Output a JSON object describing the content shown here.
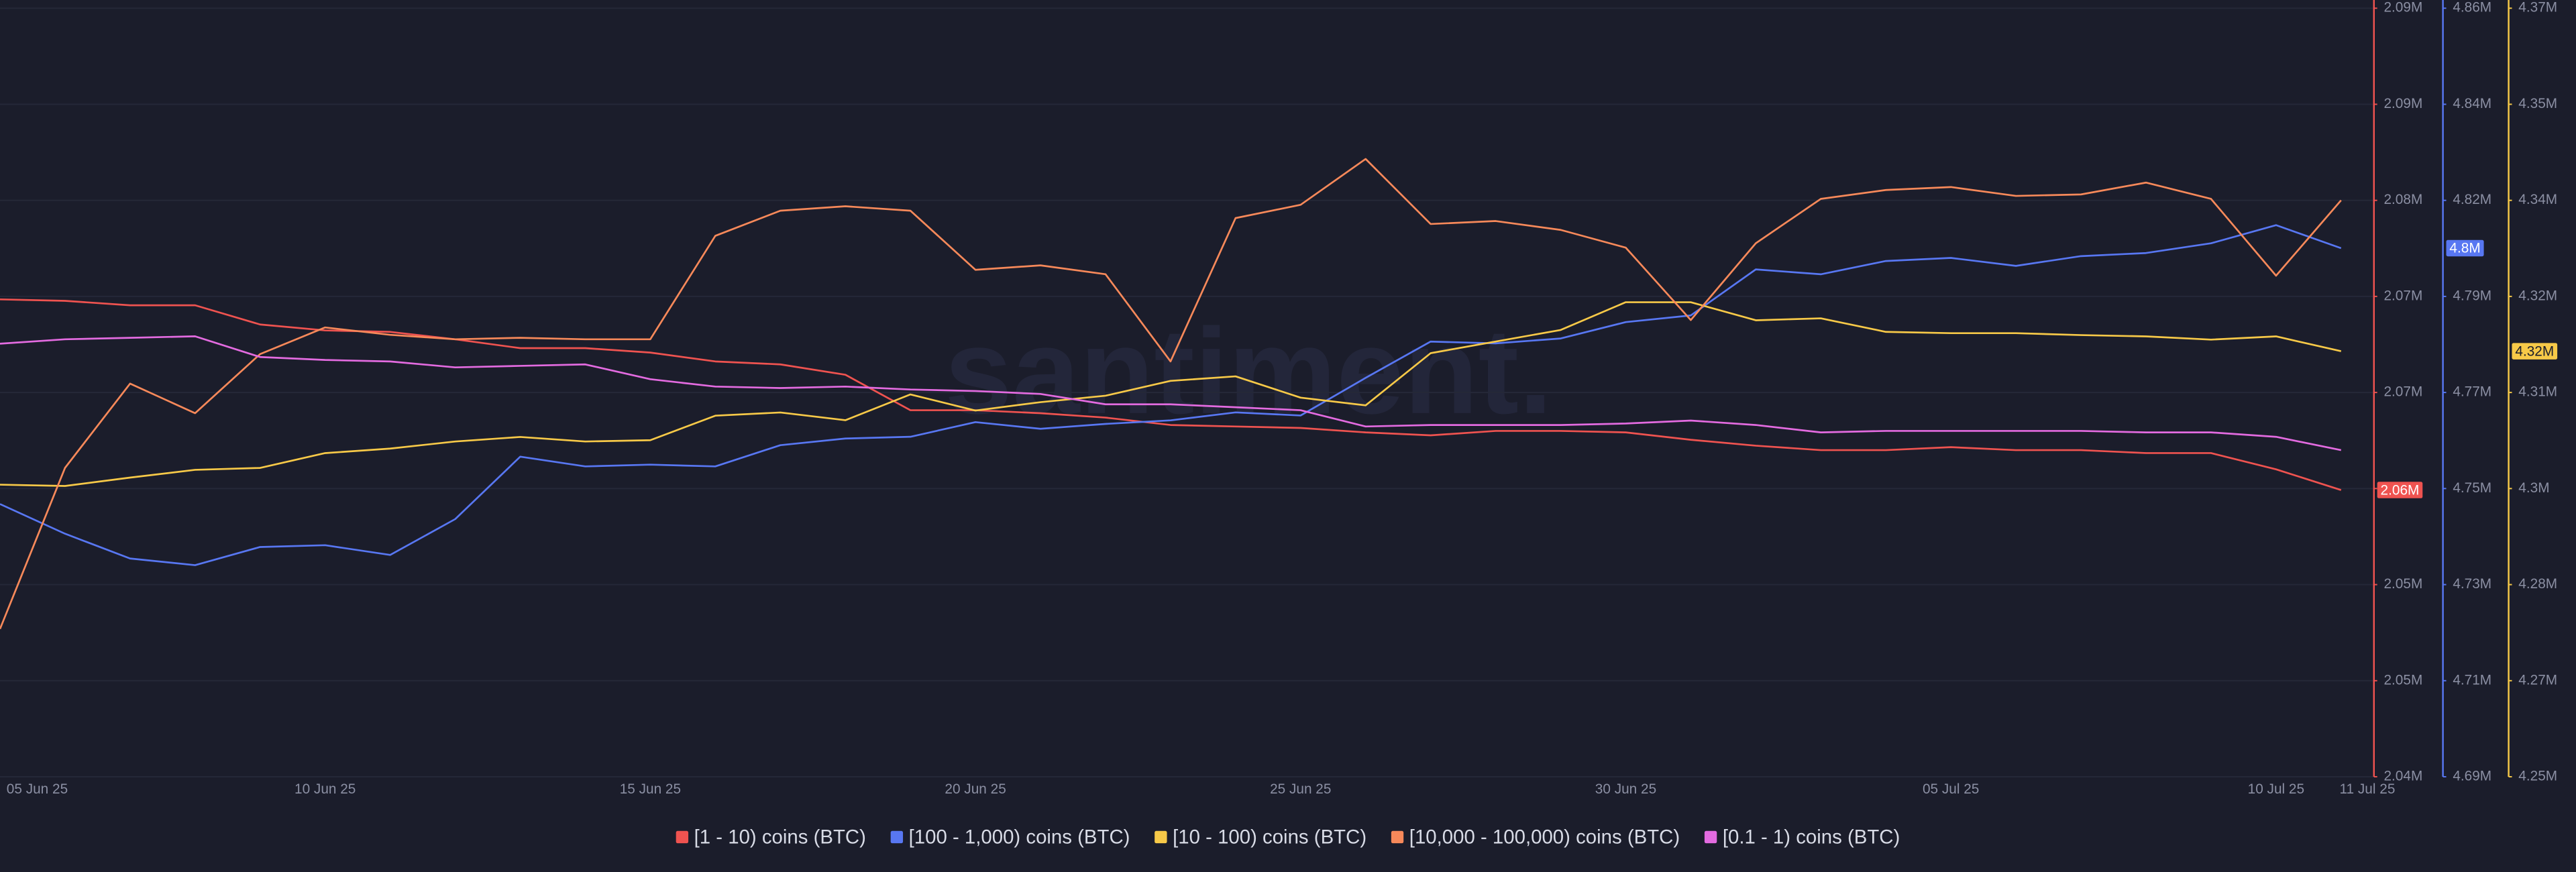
{
  "chart_data": {
    "type": "line",
    "watermark": "santiment.",
    "categories": [
      "05 Jun 25",
      null,
      null,
      null,
      null,
      "10 Jun 25",
      null,
      null,
      null,
      null,
      "15 Jun 25",
      null,
      null,
      null,
      null,
      "20 Jun 25",
      null,
      null,
      null,
      null,
      "25 Jun 25",
      null,
      null,
      null,
      null,
      "30 Jun 25",
      null,
      null,
      null,
      null,
      "05 Jul 25",
      null,
      null,
      null,
      null,
      "10 Jul 25",
      "11 Jul 25"
    ],
    "series": [
      {
        "name": "[1 - 10) coins (BTC)",
        "color": "#ef5350",
        "axis": "y",
        "values": [
          2072300,
          2072200,
          2071900,
          2071900,
          2070600,
          2070200,
          2070100,
          2069600,
          2069000,
          2069000,
          2068700,
          2068100,
          2067900,
          2067200,
          2064800,
          2064800,
          2064600,
          2064300,
          2063800,
          2063700,
          2063600,
          2063300,
          2063100,
          2063400,
          2063400,
          2063300,
          2062800,
          2062400,
          2062100,
          2062100,
          2062300,
          2062100,
          2062100,
          2061900,
          2061900,
          2060800,
          2059400
        ],
        "value_labels": [
          null,
          null,
          null,
          null,
          null,
          null,
          null,
          null,
          null,
          null,
          null,
          null,
          null,
          null,
          null,
          null,
          null,
          null,
          null,
          null,
          null,
          null,
          null,
          null,
          null,
          null,
          null,
          null,
          null,
          null,
          null,
          null,
          null,
          null,
          null,
          null,
          "2.06M"
        ]
      },
      {
        "name": "[100 - 1,000) coins (BTC)",
        "color": "#5877f2",
        "axis": "y2",
        "values": [
          4747600,
          4740900,
          4735300,
          4733800,
          4737900,
          4738300,
          4736100,
          4744200,
          4758300,
          4756100,
          4756500,
          4756100,
          4760900,
          4762400,
          4762800,
          4766100,
          4764600,
          4765700,
          4766500,
          4768300,
          4767600,
          4776100,
          4784300,
          4783900,
          4785000,
          4788700,
          4790200,
          4800600,
          4799500,
          4802500,
          4803200,
          4801400,
          4803600,
          4804300,
          4806500,
          4810600,
          4805400
        ],
        "value_labels": [
          null,
          null,
          null,
          null,
          null,
          null,
          null,
          null,
          null,
          null,
          null,
          null,
          null,
          null,
          null,
          null,
          null,
          null,
          null,
          null,
          null,
          null,
          null,
          null,
          null,
          null,
          null,
          null,
          null,
          null,
          null,
          null,
          null,
          null,
          null,
          null,
          "4.8M"
        ]
      },
      {
        "name": "[10 - 100) coins (BTC)",
        "color": "#f7c948",
        "axis": "y3",
        "values": [
          4295700,
          4295500,
          4296800,
          4298000,
          4298300,
          4300600,
          4301300,
          4302400,
          4303100,
          4302400,
          4302600,
          4306400,
          4306900,
          4305700,
          4309700,
          4307200,
          4308500,
          4309500,
          4311800,
          4312500,
          4309200,
          4308000,
          4316100,
          4317900,
          4319700,
          4324000,
          4324000,
          4321200,
          4321500,
          4319400,
          4319200,
          4319200,
          4318900,
          4318700,
          4318200,
          4318700,
          4316400
        ],
        "value_labels": [
          null,
          null,
          null,
          null,
          null,
          null,
          null,
          null,
          null,
          null,
          null,
          null,
          null,
          null,
          null,
          null,
          null,
          null,
          null,
          null,
          null,
          null,
          null,
          null,
          null,
          null,
          null,
          null,
          null,
          null,
          null,
          null,
          null,
          null,
          null,
          null,
          "4.32M"
        ]
      },
      {
        "name": "[10,000 - 100,000) coins (BTC)",
        "color": "#f7895a",
        "axis": "y",
        "values": [
          2050000,
          2060900,
          2066600,
          2064600,
          2068600,
          2070400,
          2069900,
          2069600,
          2069700,
          2069600,
          2069600,
          2076600,
          2078300,
          2078600,
          2078300,
          2074300,
          2074600,
          2074000,
          2068100,
          2077800,
          2078700,
          2081800,
          2077400,
          2077600,
          2077000,
          2075800,
          2070900,
          2076100,
          2079100,
          2079700,
          2079900,
          2079300,
          2079400,
          2080200,
          2079100,
          2073900,
          2079000
        ]
      },
      {
        "name": "[0.1 - 1) coins (BTC)",
        "color": "#e36be0",
        "axis": "y",
        "values": [
          2069300,
          2069600,
          2069700,
          2069800,
          2068400,
          2068200,
          2068100,
          2067700,
          2067800,
          2067900,
          2066900,
          2066400,
          2066300,
          2066400,
          2066200,
          2066100,
          2065900,
          2065200,
          2065200,
          2065000,
          2064800,
          2063700,
          2063800,
          2063800,
          2063800,
          2063900,
          2064100,
          2063800,
          2063300,
          2063400,
          2063400,
          2063400,
          2063400,
          2063300,
          2063300,
          2063000,
          2062100
        ]
      }
    ],
    "ylim": [
      2040000,
      2092000
    ],
    "yticks": [
      {
        "value": 2040000,
        "label": "2.04M"
      },
      {
        "value": 2046500,
        "label": "2.05M"
      },
      {
        "value": 2053000,
        "label": "2.05M"
      },
      {
        "value": 2059500,
        "label": "2.06M"
      },
      {
        "value": 2066000,
        "label": "2.07M"
      },
      {
        "value": 2072500,
        "label": "2.07M"
      },
      {
        "value": 2079000,
        "label": "2.08M"
      },
      {
        "value": 2085500,
        "label": "2.09M"
      },
      {
        "value": 2092000,
        "label": "2.09M"
      }
    ],
    "y2lim": [
      4686000,
      4859600
    ],
    "y2ticks": [
      {
        "value": 4686000,
        "label": "4.69M"
      },
      {
        "value": 4707700,
        "label": "4.71M"
      },
      {
        "value": 4729400,
        "label": "4.73M"
      },
      {
        "value": 4751100,
        "label": "4.75M"
      },
      {
        "value": 4772800,
        "label": "4.77M"
      },
      {
        "value": 4794500,
        "label": "4.79M"
      },
      {
        "value": 4816200,
        "label": "4.82M"
      },
      {
        "value": 4837900,
        "label": "4.84M"
      },
      {
        "value": 4859600,
        "label": "4.86M"
      }
    ],
    "y3lim": [
      4250400,
      4369600
    ],
    "y3ticks": [
      {
        "value": 4250400,
        "label": "4.25M"
      },
      {
        "value": 4265300,
        "label": "4.27M"
      },
      {
        "value": 4280200,
        "label": "4.28M"
      },
      {
        "value": 4295100,
        "label": "4.3M"
      },
      {
        "value": 4310000,
        "label": "4.31M"
      },
      {
        "value": 4324900,
        "label": "4.32M"
      },
      {
        "value": 4339800,
        "label": "4.34M"
      },
      {
        "value": 4354700,
        "label": "4.35M"
      },
      {
        "value": 4369600,
        "label": "4.37M"
      }
    ],
    "grid": true,
    "legend": "bottom"
  }
}
